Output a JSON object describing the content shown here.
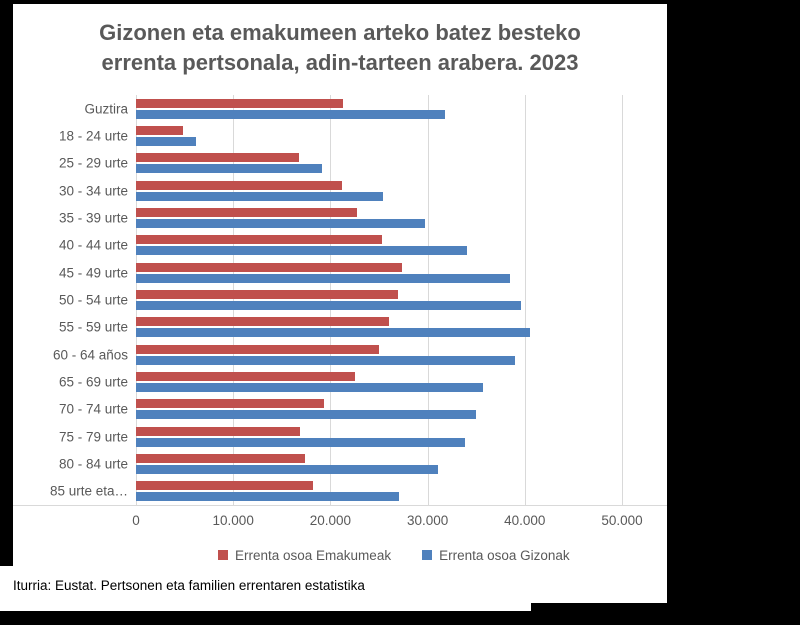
{
  "chart_data": {
    "type": "bar",
    "orientation": "horizontal",
    "title": "Gizonen eta emakumeen arteko batez besteko errenta pertsonala, adin-tarteen arabera. 2023",
    "title_lines": [
      "Gizonen eta emakumeen arteko batez besteko",
      "errenta pertsonala, adin-tarteen arabera. 2023"
    ],
    "categories": [
      "Guztira",
      "18 - 24 urte",
      "25 - 29 urte",
      "30 - 34 urte",
      "35 - 39 urte",
      "40 - 44 urte",
      "45 - 49 urte",
      "50 - 54 urte",
      "55 - 59 urte",
      "60 - 64 años",
      "65 - 69 urte",
      "70 - 74 urte",
      "75 - 79 urte",
      "80 - 84 urte",
      "85 urte eta…"
    ],
    "series": [
      {
        "name": "Errenta osoa Emakumeak",
        "color": "#C0504D",
        "values": [
          21300,
          4800,
          16800,
          21200,
          22700,
          25300,
          27400,
          27000,
          26000,
          25000,
          22500,
          19300,
          16900,
          17400,
          18200
        ]
      },
      {
        "name": "Errenta osoa Gizonak",
        "color": "#4F81BD",
        "values": [
          31800,
          6200,
          19100,
          25400,
          29700,
          34100,
          38500,
          39600,
          40500,
          39000,
          35700,
          35000,
          33800,
          31100,
          27100
        ]
      }
    ],
    "xlim": [
      0,
      50000
    ],
    "x_tick_values": [
      0,
      10000,
      20000,
      30000,
      40000,
      50000
    ],
    "x_tick_labels": [
      "0",
      "10.000",
      "20.000",
      "30.000",
      "40.000",
      "50.000"
    ],
    "grid": "vertical gridlines",
    "legend_position": "bottom",
    "colors": {
      "gridline": "#D9D9D9",
      "axis_text": "#595959",
      "title_text": "#595959",
      "emakumeak_red": "#C0504D",
      "gizonak_blue": "#4F81BD"
    }
  },
  "footer": {
    "source_text": "Iturria: Eustat. Pertsonen eta familien errentaren estatistika"
  }
}
